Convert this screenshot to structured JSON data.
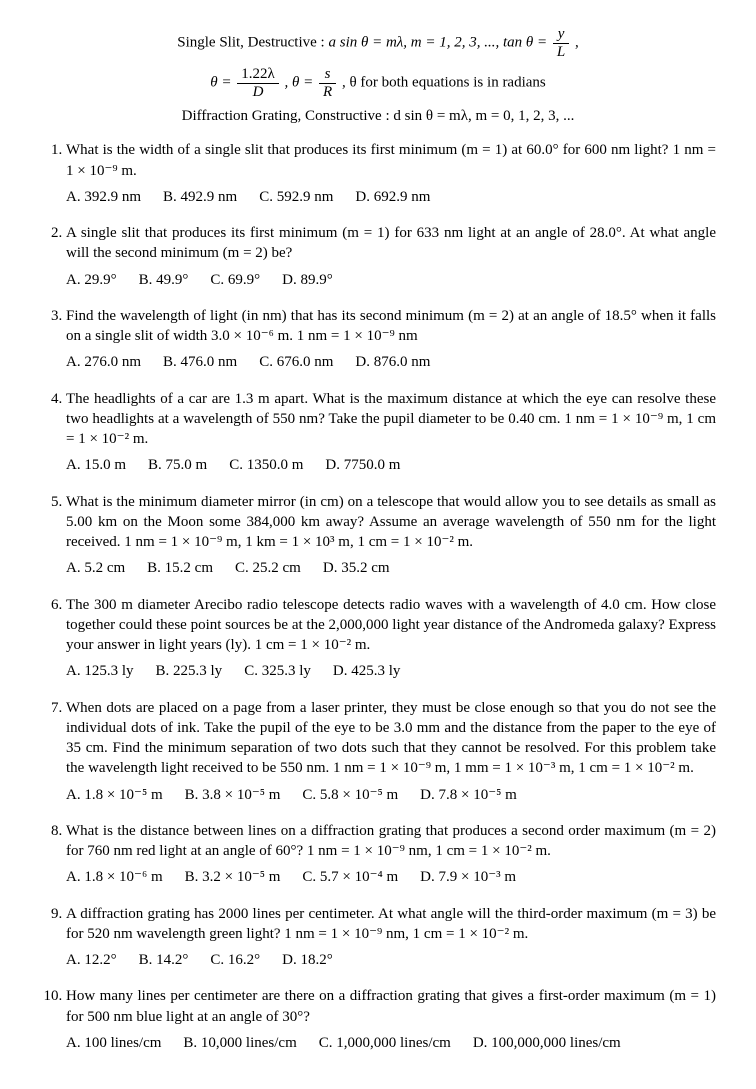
{
  "formulas": {
    "line1_a": "Single Slit, Destructive : ",
    "line1_b": "a sin θ = mλ, m = 1, 2, 3, ...,  tan θ = ",
    "line1_frac_num": "y",
    "line1_frac_den": "L",
    "line2_a": "θ = ",
    "line2_frac1_num": "1.22λ",
    "line2_frac1_den": "D",
    "line2_b": " , θ = ",
    "line2_frac2_num": "s",
    "line2_frac2_den": "R",
    "line2_c": " , θ for both equations is in radians",
    "line3": "Diffraction Grating, Constructive : d sin θ = mλ, m = 0, 1, 2, 3, ..."
  },
  "questions": [
    {
      "text": "What is the width of a single slit that produces its first minimum (m = 1) at 60.0° for 600 nm light? 1 nm = 1 × 10⁻⁹ m.",
      "choices": [
        "A. 392.9 nm",
        "B. 492.9 nm",
        "C. 592.9 nm",
        "D. 692.9 nm"
      ]
    },
    {
      "text": "A single slit that produces its first minimum (m = 1) for 633 nm light at an angle of 28.0°. At what angle will the second minimum (m = 2) be?",
      "choices": [
        "A. 29.9°",
        "B. 49.9°",
        "C. 69.9°",
        "D. 89.9°"
      ]
    },
    {
      "text": "Find the wavelength of light (in nm) that has its second minimum (m = 2) at an angle of 18.5° when it falls on a single slit of width 3.0 × 10⁻⁶ m. 1 nm = 1 × 10⁻⁹ nm",
      "choices": [
        "A. 276.0 nm",
        "B. 476.0 nm",
        "C. 676.0 nm",
        "D. 876.0 nm"
      ]
    },
    {
      "text": "The headlights of a car are 1.3 m apart. What is the maximum distance at which the eye can resolve these two headlights at a wavelength of 550 nm? Take the pupil diameter to be 0.40 cm. 1 nm = 1 × 10⁻⁹ m, 1 cm = 1 × 10⁻² m.",
      "choices": [
        "A. 15.0 m",
        "B. 75.0 m",
        "C. 1350.0 m",
        "D. 7750.0 m"
      ]
    },
    {
      "text": "What is the minimum diameter mirror (in cm) on a telescope that would allow you to see details as small as 5.00 km on the Moon some 384,000 km away? Assume an average wavelength of 550 nm for the light received. 1 nm = 1 × 10⁻⁹ m, 1 km = 1 × 10³ m, 1 cm = 1 × 10⁻² m.",
      "choices": [
        "A. 5.2 cm",
        "B. 15.2 cm",
        "C. 25.2 cm",
        "D. 35.2 cm"
      ]
    },
    {
      "text": "The 300 m diameter Arecibo radio telescope detects radio waves with a wavelength of 4.0 cm. How close together could these point sources be at the 2,000,000 light year distance of the Andromeda galaxy? Express your answer in light years (ly). 1 cm = 1 × 10⁻² m.",
      "choices": [
        "A. 125.3 ly",
        "B. 225.3 ly",
        "C. 325.3 ly",
        "D. 425.3 ly"
      ]
    },
    {
      "text": "When dots are placed on a page from a laser printer, they must be close enough so that you do not see the individual dots of ink. Take the pupil of the eye to be 3.0 mm and the distance from the paper to the eye of 35 cm. Find the minimum separation of two dots such that they cannot be resolved. For this problem take the wavelength light received to be 550 nm. 1 nm = 1 × 10⁻⁹ m, 1 mm = 1 × 10⁻³ m, 1 cm = 1 × 10⁻² m.",
      "choices": [
        "A. 1.8 × 10⁻⁵ m",
        "B. 3.8 × 10⁻⁵ m",
        "C. 5.8 × 10⁻⁵ m",
        "D. 7.8 × 10⁻⁵ m"
      ]
    },
    {
      "text": "What is the distance between lines on a diffraction grating that produces a second order maximum (m = 2) for 760 nm red light at an angle of 60°? 1 nm = 1 × 10⁻⁹ nm, 1 cm = 1 × 10⁻² m.",
      "choices": [
        "A. 1.8 × 10⁻⁶ m",
        "B. 3.2 × 10⁻⁵ m",
        "C. 5.7 × 10⁻⁴ m",
        "D. 7.9 × 10⁻³ m"
      ]
    },
    {
      "text": "A diffraction grating has 2000 lines per centimeter. At what angle will the third-order maximum (m = 3) be for 520 nm wavelength green light? 1 nm = 1 × 10⁻⁹ nm, 1 cm = 1 × 10⁻² m.",
      "choices": [
        "A. 12.2°",
        "B. 14.2°",
        "C. 16.2°",
        "D. 18.2°"
      ]
    },
    {
      "text": "How many lines per centimeter are there on a diffraction grating that gives a first-order maximum (m = 1) for 500 nm blue light at an angle of 30°?",
      "choices": [
        "A. 100 lines/cm",
        "B. 10,000 lines/cm",
        "C. 1,000,000 lines/cm",
        "D. 100,000,000 lines/cm"
      ]
    }
  ]
}
